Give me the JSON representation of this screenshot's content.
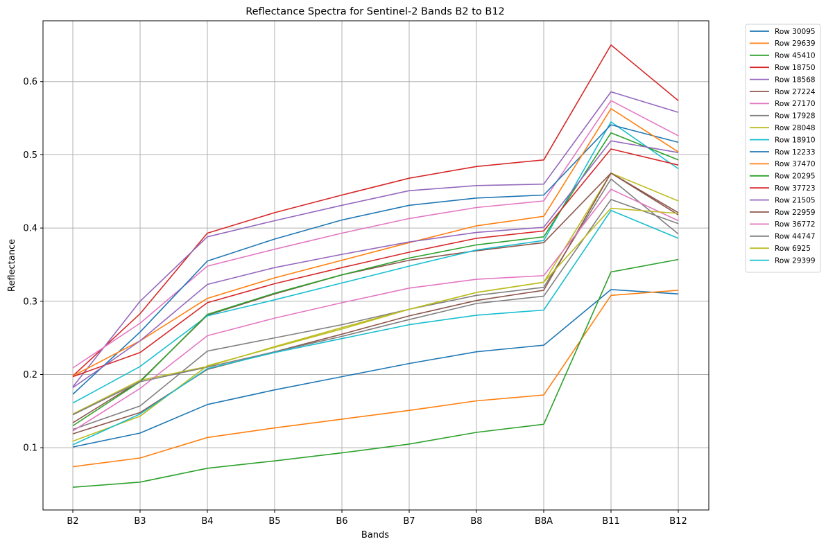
{
  "chart_data": {
    "type": "line",
    "title": "Reflectance Spectra for Sentinel-2 Bands B2 to B12",
    "xlabel": "Bands",
    "ylabel": "Reflectance",
    "categories": [
      "B2",
      "B3",
      "B4",
      "B5",
      "B6",
      "B7",
      "B8",
      "B8A",
      "B11",
      "B12"
    ],
    "ylim": [
      0.015,
      0.683
    ],
    "yticks": [
      0.1,
      0.2,
      0.3,
      0.4,
      0.5,
      0.6
    ],
    "ytick_labels": [
      "0.1",
      "0.2",
      "0.3",
      "0.4",
      "0.5",
      "0.6"
    ],
    "grid": true,
    "legend_position": "outside-upper-right",
    "series": [
      {
        "name": "Row 30095",
        "color": "#1f77b4",
        "values": [
          0.101,
          0.12,
          0.159,
          0.179,
          0.197,
          0.215,
          0.231,
          0.24,
          0.316,
          0.31
        ]
      },
      {
        "name": "Row 29639",
        "color": "#ff7f0e",
        "values": [
          0.074,
          0.086,
          0.114,
          0.127,
          0.139,
          0.151,
          0.164,
          0.172,
          0.308,
          0.315
        ]
      },
      {
        "name": "Row 45410",
        "color": "#2ca02c",
        "values": [
          0.046,
          0.053,
          0.072,
          0.082,
          0.093,
          0.105,
          0.121,
          0.132,
          0.34,
          0.357
        ]
      },
      {
        "name": "Row 18750",
        "color": "#d62728",
        "values": [
          0.198,
          0.283,
          0.393,
          0.421,
          0.445,
          0.468,
          0.484,
          0.493,
          0.65,
          0.574
        ]
      },
      {
        "name": "Row 18568",
        "color": "#9467bd",
        "values": [
          0.183,
          0.3,
          0.388,
          0.41,
          0.431,
          0.451,
          0.458,
          0.46,
          0.586,
          0.558
        ]
      },
      {
        "name": "Row 27224",
        "color": "#8c564b",
        "values": [
          0.134,
          0.191,
          0.281,
          0.31,
          0.336,
          0.356,
          0.369,
          0.38,
          0.475,
          0.421
        ]
      },
      {
        "name": "Row 27170",
        "color": "#e377c2",
        "values": [
          0.209,
          0.27,
          0.348,
          0.371,
          0.393,
          0.413,
          0.428,
          0.437,
          0.574,
          0.526
        ]
      },
      {
        "name": "Row 17928",
        "color": "#7f7f7f",
        "values": [
          0.125,
          0.157,
          0.232,
          0.25,
          0.268,
          0.289,
          0.308,
          0.319,
          0.467,
          0.392
        ]
      },
      {
        "name": "Row 28048",
        "color": "#bcbd22",
        "values": [
          0.146,
          0.192,
          0.211,
          0.238,
          0.264,
          0.289,
          0.312,
          0.326,
          0.475,
          0.437
        ]
      },
      {
        "name": "Row 18910",
        "color": "#17becf",
        "values": [
          0.161,
          0.211,
          0.28,
          0.302,
          0.325,
          0.348,
          0.37,
          0.383,
          0.545,
          0.481
        ]
      },
      {
        "name": "Row 12233",
        "color": "#1f77b4",
        "values": [
          0.173,
          0.258,
          0.355,
          0.385,
          0.411,
          0.431,
          0.441,
          0.445,
          0.541,
          0.517
        ]
      },
      {
        "name": "Row 37470",
        "color": "#ff7f0e",
        "values": [
          0.198,
          0.246,
          0.304,
          0.332,
          0.356,
          0.38,
          0.403,
          0.416,
          0.563,
          0.504
        ]
      },
      {
        "name": "Row 20295",
        "color": "#2ca02c",
        "values": [
          0.13,
          0.19,
          0.282,
          0.311,
          0.336,
          0.359,
          0.377,
          0.388,
          0.53,
          0.493
        ]
      },
      {
        "name": "Row 37723",
        "color": "#d62728",
        "values": [
          0.197,
          0.23,
          0.298,
          0.324,
          0.346,
          0.367,
          0.386,
          0.396,
          0.508,
          0.486
        ]
      },
      {
        "name": "Row 21505",
        "color": "#9467bd",
        "values": [
          0.182,
          0.246,
          0.323,
          0.346,
          0.364,
          0.381,
          0.394,
          0.401,
          0.519,
          0.503
        ]
      },
      {
        "name": "Row 22959",
        "color": "#8c564b",
        "values": [
          0.119,
          0.148,
          0.207,
          0.231,
          0.255,
          0.28,
          0.301,
          0.315,
          0.475,
          0.418
        ]
      },
      {
        "name": "Row 36772",
        "color": "#e377c2",
        "values": [
          0.123,
          0.181,
          0.253,
          0.277,
          0.298,
          0.318,
          0.33,
          0.335,
          0.453,
          0.41
        ]
      },
      {
        "name": "Row 44747",
        "color": "#7f7f7f",
        "values": [
          0.145,
          0.19,
          0.21,
          0.231,
          0.252,
          0.275,
          0.297,
          0.307,
          0.439,
          0.406
        ]
      },
      {
        "name": "Row 6925",
        "color": "#bcbd22",
        "values": [
          0.109,
          0.143,
          0.212,
          0.237,
          0.262,
          0.289,
          0.312,
          0.326,
          0.427,
          0.42
        ]
      },
      {
        "name": "Row 29399",
        "color": "#17becf",
        "values": [
          0.104,
          0.146,
          0.208,
          0.23,
          0.249,
          0.268,
          0.281,
          0.288,
          0.424,
          0.386
        ]
      }
    ]
  }
}
